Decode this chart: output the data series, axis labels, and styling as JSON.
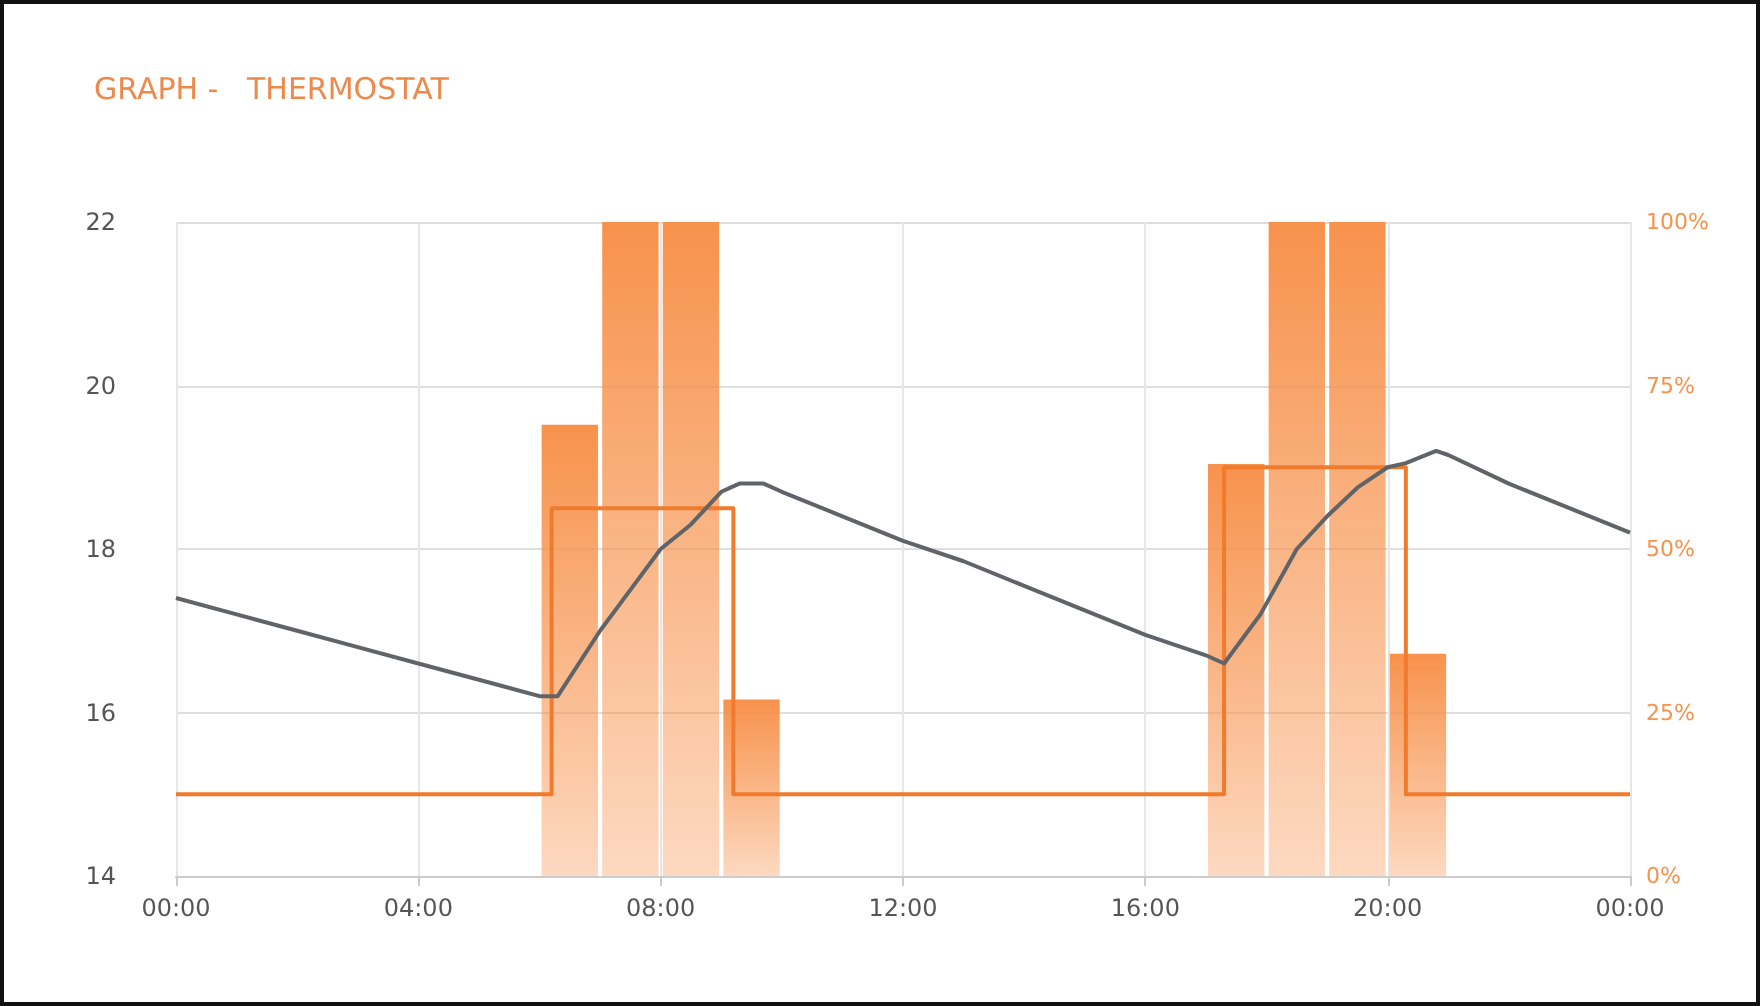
{
  "chart_data": {
    "type": "line",
    "title": "GRAPH -   THERMOSTAT",
    "xlim": [
      0,
      24
    ],
    "xticks": [
      {
        "value": 0,
        "label": "00:00"
      },
      {
        "value": 4,
        "label": "04:00"
      },
      {
        "value": 8,
        "label": "08:00"
      },
      {
        "value": 12,
        "label": "12:00"
      },
      {
        "value": 16,
        "label": "16:00"
      },
      {
        "value": 20,
        "label": "20:00"
      },
      {
        "value": 24,
        "label": "00:00"
      }
    ],
    "ylim": [
      14,
      22
    ],
    "yticks": [
      14,
      16,
      18,
      20,
      22
    ],
    "y2lim": [
      0,
      100
    ],
    "y2ticks": [
      {
        "value": 0,
        "label": "0%"
      },
      {
        "value": 25,
        "label": "25%"
      },
      {
        "value": 50,
        "label": "50%"
      },
      {
        "value": 75,
        "label": "75%"
      },
      {
        "value": 100,
        "label": "100%"
      }
    ],
    "grid": true,
    "marker": "none",
    "series": [
      {
        "type": "bar",
        "axis": "y2",
        "color": "#f7924c",
        "x": [
          6.5,
          7.5,
          8.5,
          9.5,
          17.5,
          18.5,
          19.5,
          20.5
        ],
        "values": [
          69,
          100,
          100,
          27,
          63,
          100,
          100,
          34
        ]
      },
      {
        "type": "step",
        "color": "#f07b2c",
        "x": [
          0,
          6.2,
          9.2,
          17.3,
          20.3,
          24
        ],
        "values": [
          15,
          18.5,
          15,
          19,
          15,
          15
        ]
      },
      {
        "color": "#606468",
        "x": [
          0,
          1,
          2,
          3,
          4,
          5,
          6,
          6.3,
          7,
          7.5,
          8,
          8.5,
          9,
          9.3,
          9.7,
          10,
          11,
          12,
          13,
          14,
          15,
          16,
          17,
          17.3,
          17.9,
          18.5,
          19,
          19.5,
          20,
          20.3,
          20.8,
          21,
          22,
          23,
          24
        ],
        "values": [
          17.4,
          17.2,
          17.0,
          16.8,
          16.6,
          16.4,
          16.2,
          16.2,
          17.0,
          17.5,
          18.0,
          18.3,
          18.7,
          18.8,
          18.8,
          18.7,
          18.4,
          18.1,
          17.85,
          17.55,
          17.25,
          16.95,
          16.7,
          16.6,
          17.2,
          18.0,
          18.4,
          18.75,
          19.0,
          19.05,
          19.2,
          19.15,
          18.8,
          18.5,
          18.2
        ]
      }
    ]
  }
}
